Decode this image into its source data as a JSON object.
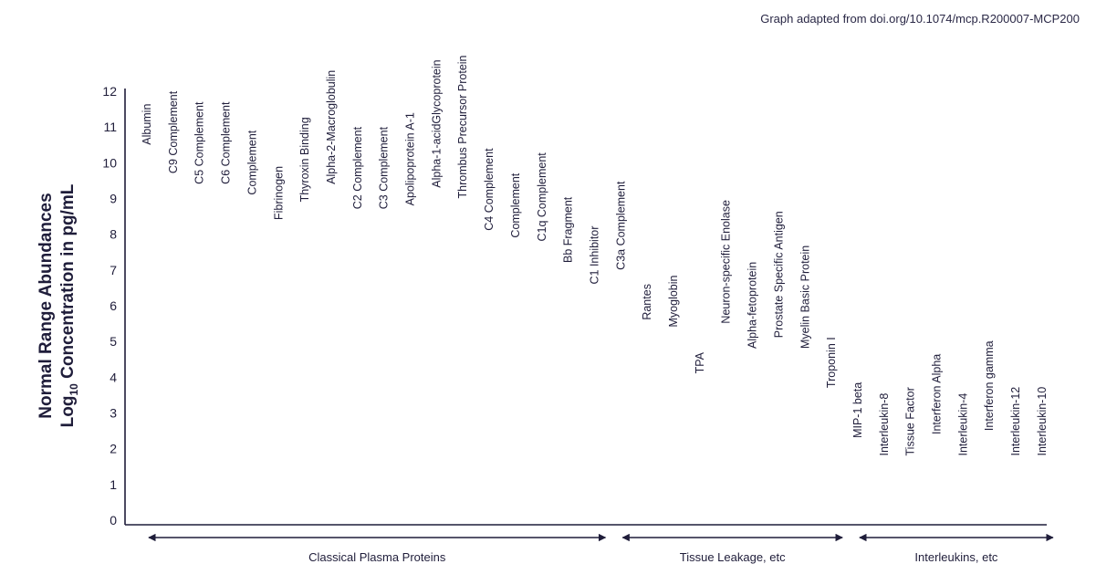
{
  "source_note": "Graph adapted from doi.org/10.1074/mcp.R200007-MCP200",
  "chart_data": {
    "type": "scatter",
    "ylabel_line1": "Normal Range Abundances",
    "ylabel_line2_pre": "Log",
    "ylabel_line2_sub": "10",
    "ylabel_line2_post": " Concentration in pg/mL",
    "ylim": [
      0,
      12
    ],
    "yticks": [
      "0",
      "1",
      "2",
      "3",
      "4",
      "5",
      "6",
      "7",
      "8",
      "9",
      "10",
      "11",
      "12"
    ],
    "points": [
      {
        "label": "Albumin",
        "y": 10.5
      },
      {
        "label": "C9 Complement",
        "y": 9.7
      },
      {
        "label": "C5 Complement",
        "y": 9.4
      },
      {
        "label": "C6 Complement",
        "y": 9.4
      },
      {
        "label": "Complement",
        "y": 9.1
      },
      {
        "label": "Fibrinogen",
        "y": 8.4
      },
      {
        "label": "Thyroxin Binding",
        "y": 8.9
      },
      {
        "label": "Alpha-2-Macroglobulin",
        "y": 9.4
      },
      {
        "label": "C2 Complement",
        "y": 8.7
      },
      {
        "label": "C3 Complement",
        "y": 8.7
      },
      {
        "label": "Apolipoprotein A-1",
        "y": 8.8
      },
      {
        "label": "Alpha-1-acidGlycoprotein",
        "y": 9.3
      },
      {
        "label": "Thrombus Precursor Protein",
        "y": 9.0
      },
      {
        "label": "C4 Complement",
        "y": 8.1
      },
      {
        "label": "Complement",
        "y": 7.9
      },
      {
        "label": "C1q Complement",
        "y": 7.8
      },
      {
        "label": "Bb Fragment",
        "y": 7.2
      },
      {
        "label": "C1 Inhibitor",
        "y": 6.6
      },
      {
        "label": "C3a Complement",
        "y": 7.0
      },
      {
        "label": "Rantes",
        "y": 5.6
      },
      {
        "label": "Myoglobin",
        "y": 5.4
      },
      {
        "label": "TPA",
        "y": 4.1
      },
      {
        "label": "Neuron-specific Enolase",
        "y": 5.5
      },
      {
        "label": "Alpha-fetoprotein",
        "y": 4.8
      },
      {
        "label": "Prostate Specific Antigen",
        "y": 5.1
      },
      {
        "label": "Myelin Basic Protein",
        "y": 4.8
      },
      {
        "label": "Troponin I",
        "y": 3.7
      },
      {
        "label": "MIP-1 beta",
        "y": 2.3
      },
      {
        "label": "Interleukin-8",
        "y": 1.8
      },
      {
        "label": "Tissue Factor",
        "y": 1.8
      },
      {
        "label": "Interferon Alpha",
        "y": 2.4
      },
      {
        "label": "Interleukin-4",
        "y": 1.8
      },
      {
        "label": "Interferon gamma",
        "y": 2.5
      },
      {
        "label": "Interleukin-12",
        "y": 1.8
      },
      {
        "label": "Interleukin-10",
        "y": 1.8
      }
    ],
    "groups": [
      {
        "label": "Classical Plasma Proteins",
        "first": 0,
        "last": 17
      },
      {
        "label": "Tissue Leakage, etc",
        "first": 18,
        "last": 26
      },
      {
        "label": "Interleukins, etc",
        "first": 27,
        "last": 34
      }
    ],
    "colors": {
      "text": "#1f1d3a",
      "axis": "#1f1d3a"
    }
  }
}
